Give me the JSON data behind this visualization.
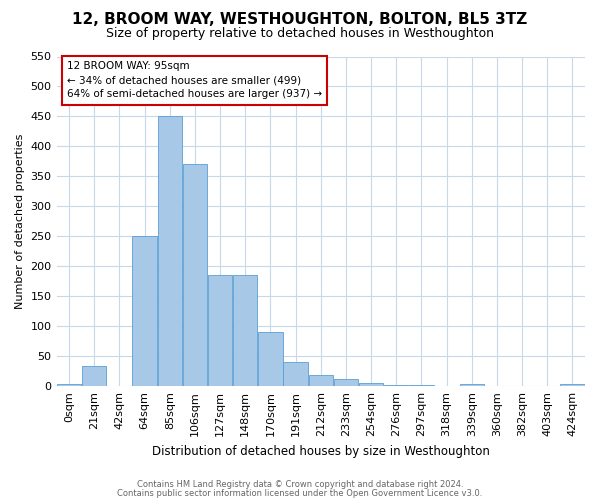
{
  "title": "12, BROOM WAY, WESTHOUGHTON, BOLTON, BL5 3TZ",
  "subtitle": "Size of property relative to detached houses in Westhoughton",
  "xlabel": "Distribution of detached houses by size in Westhoughton",
  "ylabel": "Number of detached properties",
  "footnote1": "Contains HM Land Registry data © Crown copyright and database right 2024.",
  "footnote2": "Contains public sector information licensed under the Open Government Licence v3.0.",
  "annotation_title": "12 BROOM WAY: 95sqm",
  "annotation_line1": "← 34% of detached houses are smaller (499)",
  "annotation_line2": "64% of semi-detached houses are larger (937) →",
  "bin_labels": [
    "0sqm",
    "21sqm",
    "42sqm",
    "64sqm",
    "85sqm",
    "106sqm",
    "127sqm",
    "148sqm",
    "170sqm",
    "191sqm",
    "212sqm",
    "233sqm",
    "254sqm",
    "276sqm",
    "297sqm",
    "318sqm",
    "339sqm",
    "360sqm",
    "382sqm",
    "403sqm",
    "424sqm"
  ],
  "bar_values": [
    3,
    33,
    0,
    250,
    450,
    370,
    185,
    185,
    90,
    40,
    18,
    12,
    5,
    2,
    2,
    0,
    3,
    0,
    0,
    0,
    3
  ],
  "bar_color": "#a8c8e8",
  "bar_edge_color": "#5a9fd4",
  "bg_color": "#ffffff",
  "grid_color": "#c8d8e8",
  "ylim": [
    0,
    550
  ],
  "annotation_box_color": "#cc0000",
  "title_fontsize": 11,
  "subtitle_fontsize": 9,
  "yticks": [
    0,
    50,
    100,
    150,
    200,
    250,
    300,
    350,
    400,
    450,
    500,
    550
  ]
}
